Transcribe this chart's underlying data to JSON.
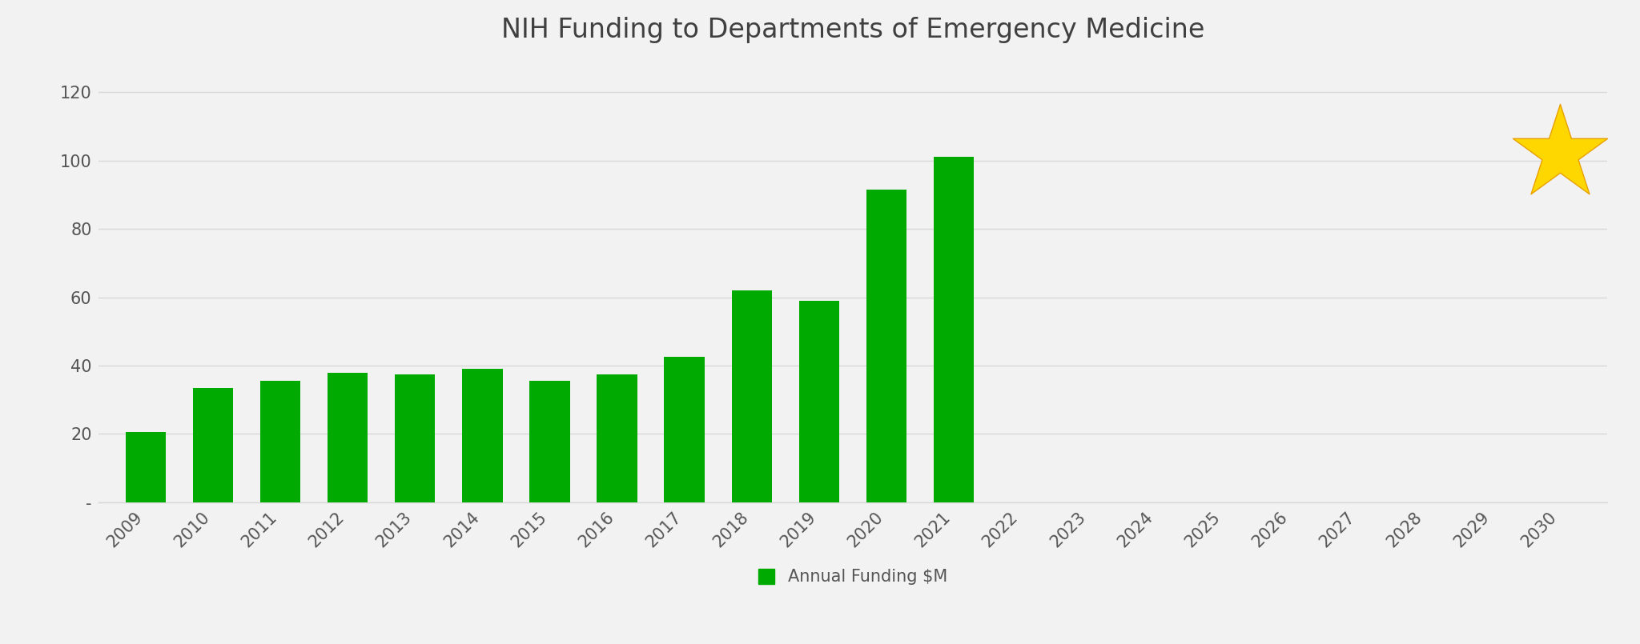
{
  "title": "NIH Funding to Departments of Emergency Medicine",
  "title_fontsize": 24,
  "title_color": "#404040",
  "background_color": "#f2f2f2",
  "bar_color": "#00aa00",
  "bar_years": [
    2009,
    2010,
    2011,
    2012,
    2013,
    2014,
    2015,
    2016,
    2017,
    2018,
    2019,
    2020,
    2021
  ],
  "bar_values": [
    20.5,
    33.5,
    35.5,
    38.0,
    37.5,
    39.0,
    35.5,
    37.5,
    42.5,
    62.0,
    59.0,
    91.5,
    101.0
  ],
  "star_year": 2030,
  "star_value": 102,
  "star_color": "#FFD700",
  "star_size": 8000,
  "all_years": [
    2009,
    2010,
    2011,
    2012,
    2013,
    2014,
    2015,
    2016,
    2017,
    2018,
    2019,
    2020,
    2021,
    2022,
    2023,
    2024,
    2025,
    2026,
    2027,
    2028,
    2029,
    2030
  ],
  "ylim": [
    0,
    130
  ],
  "yticks": [
    0,
    20,
    40,
    60,
    80,
    100,
    120
  ],
  "ytick_labels": [
    "-",
    "20",
    "40",
    "60",
    "80",
    "100",
    "120"
  ],
  "legend_label": "Annual Funding $M",
  "grid_color": "#d8d8d8",
  "tick_color": "#555555",
  "tick_fontsize": 15
}
